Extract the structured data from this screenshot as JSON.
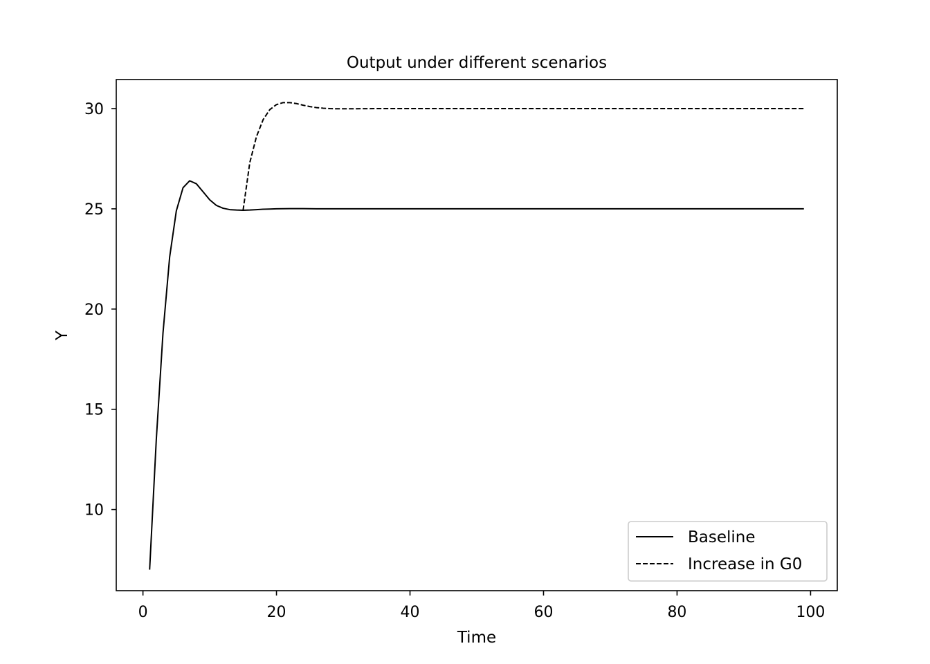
{
  "chart_data": {
    "type": "line",
    "title": "Output under different scenarios",
    "xlabel": "Time",
    "ylabel": "Y",
    "xlim": [
      -4,
      104
    ],
    "ylim": [
      5.95,
      31.45
    ],
    "xticks": [
      0,
      20,
      40,
      60,
      80,
      100
    ],
    "yticks": [
      10,
      15,
      20,
      25,
      30
    ],
    "grid": false,
    "legend_position": "lower-right",
    "series": [
      {
        "name": "Baseline",
        "style": "solid",
        "color": "#000000",
        "x": [
          1,
          2,
          3,
          4,
          5,
          6,
          7,
          8,
          9,
          10,
          11,
          12,
          13,
          14,
          15,
          16,
          17,
          18,
          19,
          20,
          22,
          24,
          26,
          28,
          30,
          35,
          40,
          50,
          60,
          70,
          80,
          90,
          99
        ],
        "y": [
          7.0,
          13.5,
          18.8,
          22.6,
          24.9,
          26.05,
          26.4,
          26.25,
          25.85,
          25.45,
          25.17,
          25.03,
          24.96,
          24.94,
          24.93,
          24.94,
          24.96,
          24.98,
          24.99,
          25.0,
          25.01,
          25.01,
          25.0,
          25.0,
          25.0,
          25.0,
          25.0,
          25.0,
          25.0,
          25.0,
          25.0,
          25.0,
          25.0
        ]
      },
      {
        "name": "Increase in G0",
        "style": "dashed",
        "color": "#000000",
        "x": [
          15,
          16,
          17,
          18,
          19,
          20,
          21,
          22,
          23,
          24,
          25,
          26,
          27,
          28,
          29,
          30,
          35,
          40,
          50,
          60,
          70,
          80,
          90,
          99
        ],
        "y": [
          24.93,
          27.3,
          28.6,
          29.45,
          29.95,
          30.2,
          30.3,
          30.3,
          30.25,
          30.17,
          30.1,
          30.05,
          30.02,
          30.0,
          29.99,
          29.99,
          30.0,
          30.0,
          30.0,
          30.0,
          30.0,
          30.0,
          30.0,
          30.0
        ]
      }
    ]
  }
}
